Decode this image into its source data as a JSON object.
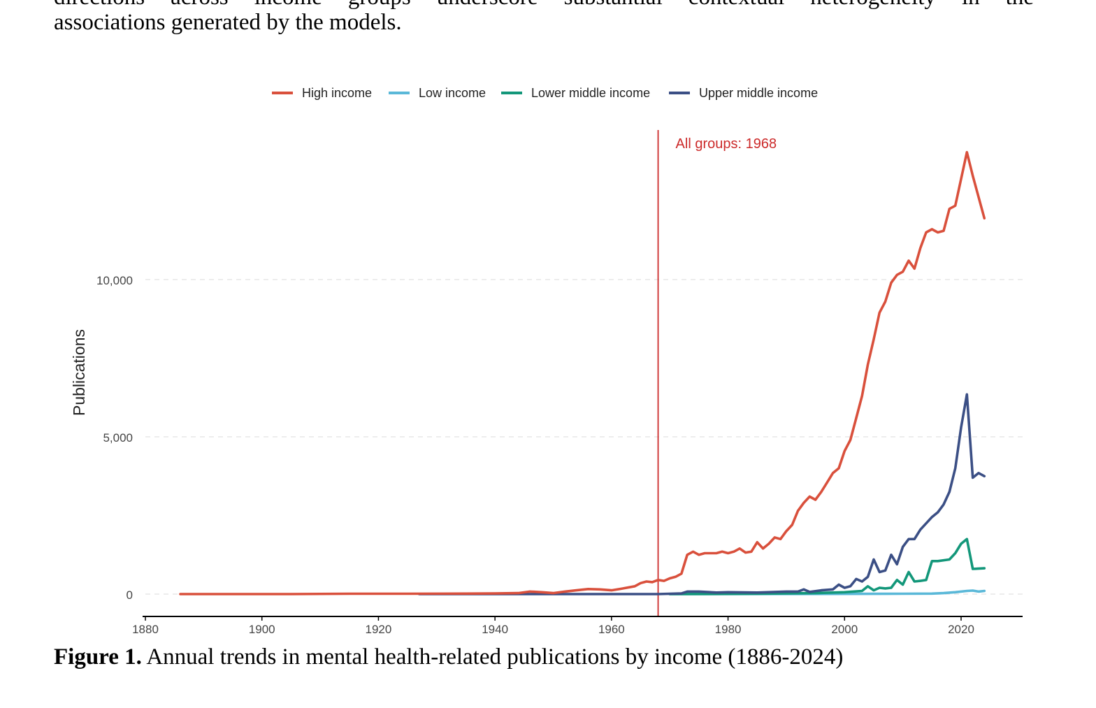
{
  "paragraph": {
    "line1": "directions across income groups underscore substantial contextual heterogeneity in the",
    "line2": "associations generated by the models."
  },
  "caption": {
    "label": "Figure 1.",
    "text": " Annual trends in mental health-related publications by income (1886-2024)"
  },
  "chart_data": {
    "type": "line",
    "title": "",
    "xlabel": "",
    "ylabel": "Publications",
    "xlim": [
      1880,
      2030
    ],
    "ylim": [
      -700,
      14800
    ],
    "x_ticks": [
      1880,
      1900,
      1920,
      1940,
      1960,
      1980,
      2000,
      2020
    ],
    "y_ticks": [
      0,
      5000,
      10000
    ],
    "y_tick_labels": [
      "0",
      "5,000",
      "10,000"
    ],
    "grid": "horizontal dashed",
    "legend_position": "top",
    "annotation": {
      "x": 1968,
      "label": "All groups: 1968",
      "color": "#cc2a2a"
    },
    "series": [
      {
        "name": "High income",
        "color": "#d9503c",
        "points": [
          [
            1886,
            0
          ],
          [
            1895,
            0
          ],
          [
            1905,
            0
          ],
          [
            1915,
            10
          ],
          [
            1925,
            10
          ],
          [
            1935,
            15
          ],
          [
            1940,
            20
          ],
          [
            1944,
            30
          ],
          [
            1946,
            80
          ],
          [
            1948,
            60
          ],
          [
            1950,
            30
          ],
          [
            1952,
            80
          ],
          [
            1954,
            120
          ],
          [
            1956,
            160
          ],
          [
            1958,
            150
          ],
          [
            1960,
            120
          ],
          [
            1962,
            180
          ],
          [
            1964,
            250
          ],
          [
            1965,
            350
          ],
          [
            1966,
            400
          ],
          [
            1967,
            380
          ],
          [
            1968,
            450
          ],
          [
            1969,
            420
          ],
          [
            1970,
            500
          ],
          [
            1971,
            550
          ],
          [
            1972,
            650
          ],
          [
            1973,
            1250
          ],
          [
            1974,
            1350
          ],
          [
            1975,
            1250
          ],
          [
            1976,
            1300
          ],
          [
            1978,
            1300
          ],
          [
            1979,
            1350
          ],
          [
            1980,
            1300
          ],
          [
            1981,
            1350
          ],
          [
            1982,
            1450
          ],
          [
            1983,
            1320
          ],
          [
            1984,
            1350
          ],
          [
            1985,
            1650
          ],
          [
            1986,
            1450
          ],
          [
            1987,
            1600
          ],
          [
            1988,
            1800
          ],
          [
            1989,
            1750
          ],
          [
            1990,
            2000
          ],
          [
            1991,
            2200
          ],
          [
            1992,
            2650
          ],
          [
            1993,
            2900
          ],
          [
            1994,
            3100
          ],
          [
            1995,
            3000
          ],
          [
            1996,
            3250
          ],
          [
            1997,
            3550
          ],
          [
            1998,
            3850
          ],
          [
            1999,
            4000
          ],
          [
            2000,
            4550
          ],
          [
            2001,
            4900
          ],
          [
            2002,
            5600
          ],
          [
            2003,
            6300
          ],
          [
            2004,
            7300
          ],
          [
            2005,
            8100
          ],
          [
            2006,
            8950
          ],
          [
            2007,
            9300
          ],
          [
            2008,
            9900
          ],
          [
            2009,
            10150
          ],
          [
            2010,
            10250
          ],
          [
            2011,
            10600
          ],
          [
            2012,
            10350
          ],
          [
            2013,
            11000
          ],
          [
            2014,
            11500
          ],
          [
            2015,
            11600
          ],
          [
            2016,
            11500
          ],
          [
            2017,
            11550
          ],
          [
            2018,
            12250
          ],
          [
            2019,
            12350
          ],
          [
            2020,
            13200
          ],
          [
            2021,
            14050
          ],
          [
            2022,
            13300
          ],
          [
            2024,
            11950
          ]
        ]
      },
      {
        "name": "Low income",
        "color": "#5ab8d8",
        "points": [
          [
            1970,
            0
          ],
          [
            1990,
            5
          ],
          [
            2010,
            10
          ],
          [
            2015,
            15
          ],
          [
            2017,
            30
          ],
          [
            2019,
            60
          ],
          [
            2021,
            100
          ],
          [
            2022,
            110
          ],
          [
            2023,
            80
          ],
          [
            2024,
            100
          ]
        ]
      },
      {
        "name": "Lower middle income",
        "color": "#13977a",
        "points": [
          [
            1970,
            0
          ],
          [
            1985,
            10
          ],
          [
            1995,
            30
          ],
          [
            2000,
            60
          ],
          [
            2003,
            100
          ],
          [
            2004,
            250
          ],
          [
            2005,
            120
          ],
          [
            2006,
            200
          ],
          [
            2007,
            180
          ],
          [
            2008,
            200
          ],
          [
            2009,
            450
          ],
          [
            2010,
            300
          ],
          [
            2011,
            700
          ],
          [
            2012,
            400
          ],
          [
            2013,
            420
          ],
          [
            2014,
            450
          ],
          [
            2015,
            1050
          ],
          [
            2016,
            1050
          ],
          [
            2018,
            1100
          ],
          [
            2019,
            1300
          ],
          [
            2020,
            1600
          ],
          [
            2021,
            1750
          ],
          [
            2022,
            800
          ],
          [
            2024,
            820
          ]
        ]
      },
      {
        "name": "Upper middle income",
        "color": "#3b4f85",
        "points": [
          [
            1927,
            0
          ],
          [
            1950,
            0
          ],
          [
            1968,
            0
          ],
          [
            1972,
            20
          ],
          [
            1973,
            80
          ],
          [
            1975,
            80
          ],
          [
            1978,
            50
          ],
          [
            1980,
            60
          ],
          [
            1985,
            50
          ],
          [
            1990,
            80
          ],
          [
            1992,
            80
          ],
          [
            1993,
            150
          ],
          [
            1994,
            70
          ],
          [
            1996,
            120
          ],
          [
            1998,
            150
          ],
          [
            1999,
            300
          ],
          [
            2000,
            200
          ],
          [
            2001,
            250
          ],
          [
            2002,
            480
          ],
          [
            2003,
            400
          ],
          [
            2004,
            550
          ],
          [
            2005,
            1100
          ],
          [
            2006,
            700
          ],
          [
            2007,
            750
          ],
          [
            2008,
            1250
          ],
          [
            2009,
            950
          ],
          [
            2010,
            1500
          ],
          [
            2011,
            1750
          ],
          [
            2012,
            1750
          ],
          [
            2013,
            2050
          ],
          [
            2014,
            2250
          ],
          [
            2015,
            2450
          ],
          [
            2016,
            2600
          ],
          [
            2017,
            2850
          ],
          [
            2018,
            3250
          ],
          [
            2019,
            4000
          ],
          [
            2020,
            5300
          ],
          [
            2021,
            6350
          ],
          [
            2022,
            3700
          ],
          [
            2023,
            3850
          ],
          [
            2024,
            3750
          ]
        ]
      }
    ]
  }
}
